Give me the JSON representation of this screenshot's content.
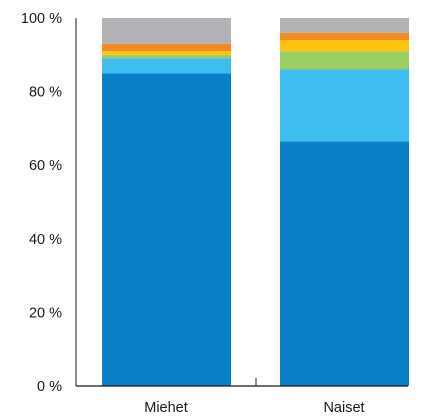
{
  "chart_data": {
    "type": "bar",
    "stacked": true,
    "categories": [
      "Miehet",
      "Naiset"
    ],
    "series": [
      {
        "color": "#0a7fca",
        "values": [
          85,
          66.5
        ]
      },
      {
        "color": "#3ebef0",
        "values": [
          4,
          19.5
        ]
      },
      {
        "color": "#9ccf63",
        "values": [
          1,
          5
        ]
      },
      {
        "color": "#ffc20e",
        "values": [
          1,
          3
        ]
      },
      {
        "color": "#f38b24",
        "values": [
          2,
          2
        ]
      },
      {
        "color": "#b0b2b5",
        "values": [
          7,
          4
        ]
      }
    ],
    "ylim": [
      0,
      100
    ],
    "yticks": [
      0,
      20,
      40,
      60,
      80,
      100
    ],
    "ytick_labels": [
      "0 %",
      "20 %",
      "40 %",
      "60 %",
      "80 %",
      "100 %"
    ],
    "grid": false,
    "legend": "none",
    "title": "",
    "xlabel": "",
    "ylabel": ""
  }
}
